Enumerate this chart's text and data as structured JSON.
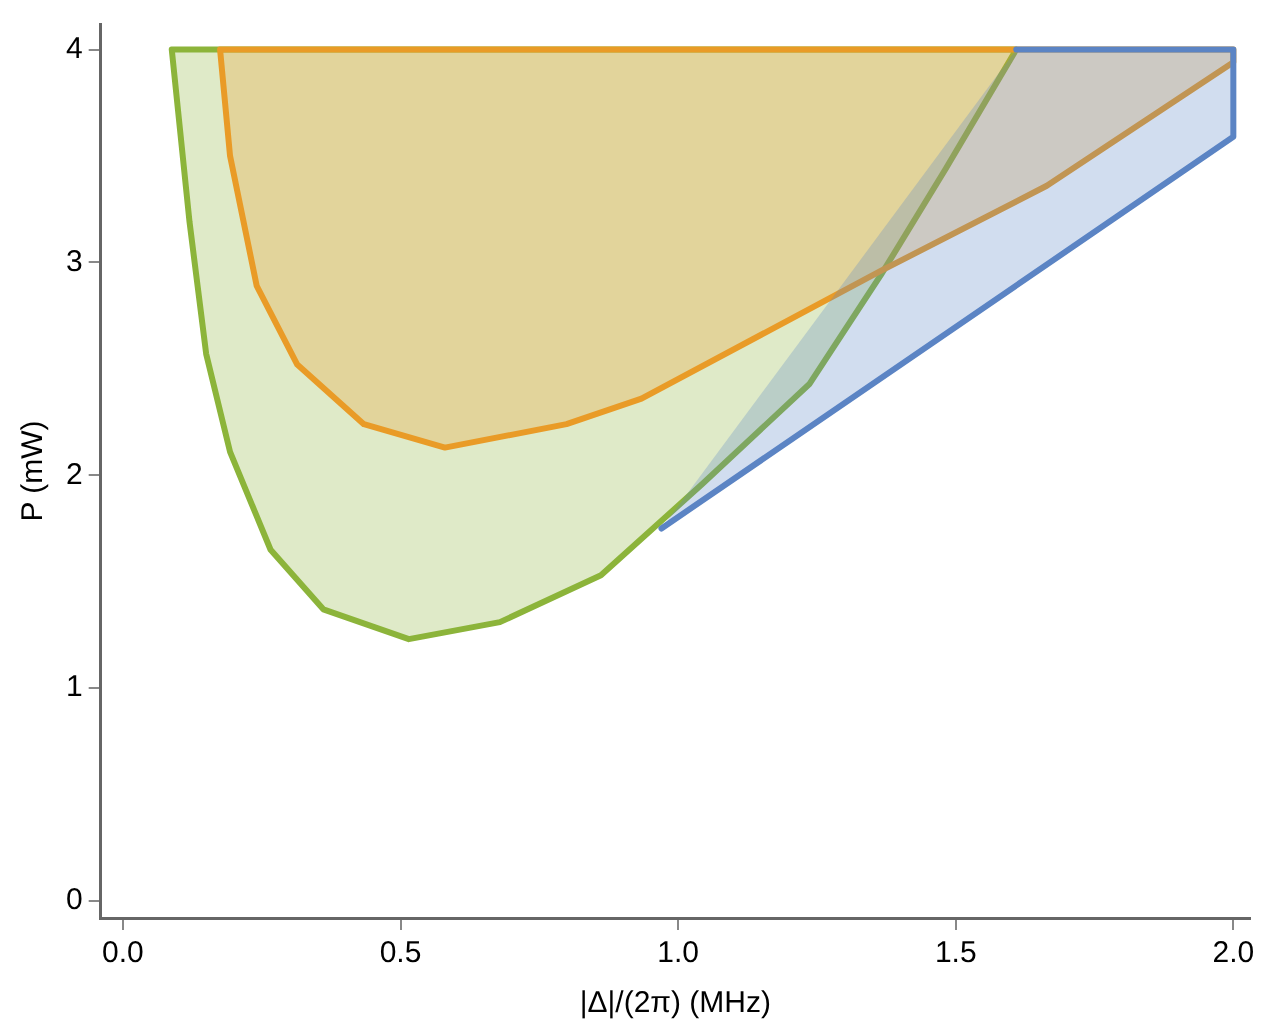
{
  "chart_data": {
    "type": "area",
    "xlabel": "|Δ|/(2π) (MHz)",
    "ylabel": "P (mW)",
    "xlim": [
      -0.04,
      2.03
    ],
    "ylim": [
      -0.08,
      4.12
    ],
    "xticks": [
      {
        "value": 0,
        "label": "0.0"
      },
      {
        "value": 0.5,
        "label": "0.5"
      },
      {
        "value": 1,
        "label": "1.0"
      },
      {
        "value": 1.5,
        "label": "1.5"
      },
      {
        "value": 2,
        "label": "2.0"
      }
    ],
    "yticks": [
      0,
      1,
      2,
      3,
      4
    ],
    "grid": false,
    "legend": false,
    "series": [
      {
        "color": "#5b84c4",
        "x": [
          0.97,
          2.0,
          2.0,
          1.609
        ],
        "values": [
          1.75,
          3.59,
          4,
          4
        ]
      },
      {
        "color": "#e99b27",
        "x": [
          0.175,
          0.193,
          0.241,
          0.314,
          0.434,
          0.58,
          0.799,
          0.934,
          1.365,
          1.664,
          2.0,
          2.0,
          0.175
        ],
        "values": [
          4,
          3.5,
          2.89,
          2.52,
          2.24,
          2.13,
          2.24,
          2.36,
          2.96,
          3.36,
          3.94,
          4,
          4
        ]
      },
      {
        "color": "#8cb43a",
        "x": [
          0.088,
          0.12,
          0.15,
          0.193,
          0.266,
          0.361,
          0.515,
          0.679,
          0.861,
          1.044,
          1.237,
          1.365,
          1.482,
          1.609,
          0.088
        ],
        "values": [
          4,
          3.19,
          2.57,
          2.11,
          1.65,
          1.37,
          1.23,
          1.31,
          1.53,
          1.96,
          2.43,
          2.94,
          3.44,
          4,
          4
        ]
      }
    ]
  }
}
